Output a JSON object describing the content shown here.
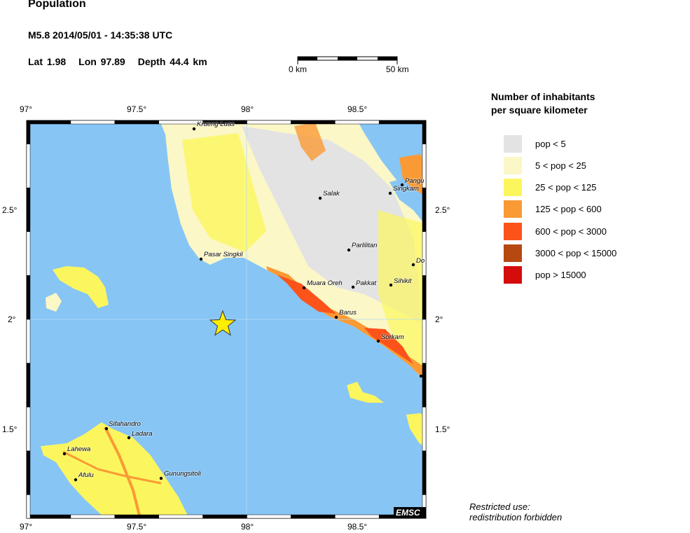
{
  "header": {
    "title": "Population",
    "event": "M5.8  2014/05/01 - 14:35:38 UTC",
    "lat": "Lat  1.98",
    "lon": "Lon  97.89",
    "depth": "Depth  44.4 km"
  },
  "scale_bar": {
    "start_label": "0 km",
    "end_label": "50 km"
  },
  "map": {
    "lon_ticks_top": [
      "97°",
      "97.5°",
      "98°",
      "98.5°"
    ],
    "lon_ticks_bottom": [
      "97°",
      "97.5°",
      "98°",
      "98.5°"
    ],
    "lat_ticks_left": [
      "2.5°",
      "2°",
      "1.5°"
    ],
    "lat_ticks_right": [
      "2.5°",
      "2°",
      "1.5°"
    ],
    "epicenter_marker": "star",
    "epicenter_color": "#ffee00",
    "sea_color": "#87c5f5",
    "cities": [
      "Krueng Luas",
      "Pangu",
      "Singkam",
      "Salak",
      "Parlilitan",
      "Pasar Singkil",
      "Do",
      "Muara Oreh",
      "Pakkat",
      "Sihikit",
      "Barus",
      "Sorkam",
      "Sifahandro",
      "Ladara",
      "Lahewa",
      "Afulu",
      "Gunungsitoli"
    ],
    "credit": "EMSC"
  },
  "legend": {
    "title_line1": "Number of inhabitants",
    "title_line2": "per square kilometer",
    "items": [
      {
        "label": "pop < 5",
        "color": "#e3e3e3"
      },
      {
        "label": "5 < pop < 25",
        "color": "#fbf7c6"
      },
      {
        "label": "25 < pop < 125",
        "color": "#fcf65e"
      },
      {
        "label": "125 < pop < 600",
        "color": "#fa9a35"
      },
      {
        "label": "600 < pop < 3000",
        "color": "#fc531a"
      },
      {
        "label": "3000 < pop < 15000",
        "color": "#b64812"
      },
      {
        "label": "pop > 15000",
        "color": "#d40c0c"
      }
    ]
  },
  "note": {
    "line1": "Restricted use:",
    "line2": "redistribution forbidden"
  }
}
